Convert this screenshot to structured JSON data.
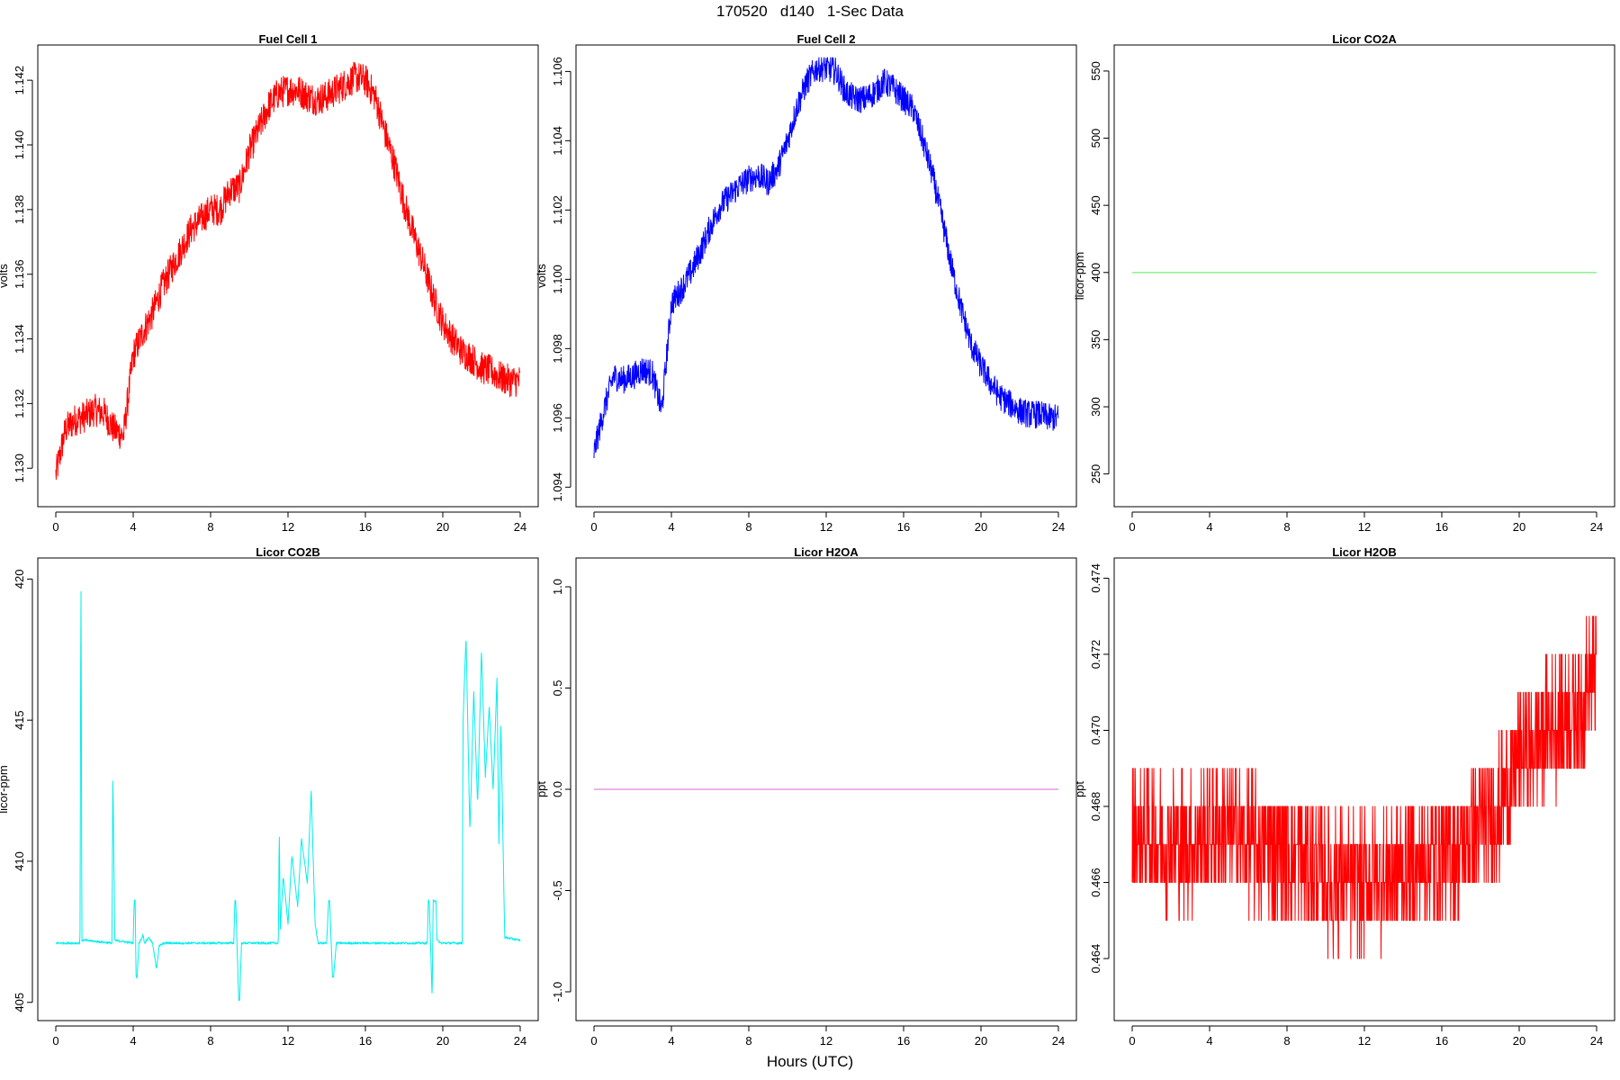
{
  "page": {
    "title": "170520   d140   1-Sec Data",
    "xlabel": "Hours (UTC)"
  },
  "chart_data": [
    {
      "type": "line",
      "title": "Fuel Cell 1",
      "ylabel": "volts",
      "color": "#ff0000",
      "xlim": [
        0,
        24
      ],
      "ylim": [
        1.1292,
        1.1427
      ],
      "xticks": [
        "0",
        "4",
        "8",
        "12",
        "16",
        "20",
        "24"
      ],
      "yticks": [
        "1.130",
        "1.132",
        "1.134",
        "1.136",
        "1.138",
        "1.140",
        "1.142"
      ],
      "noise": 0.0005,
      "x": [
        0,
        0.5,
        1,
        1.5,
        2,
        2.5,
        3,
        3.5,
        4,
        4.5,
        5,
        5.5,
        6,
        6.5,
        7,
        7.5,
        8,
        8.5,
        9,
        9.5,
        10,
        10.5,
        11,
        11.5,
        12,
        12.5,
        13,
        13.5,
        14,
        14.5,
        15,
        15.5,
        16,
        16.5,
        17,
        17.5,
        18,
        18.5,
        19,
        19.5,
        20,
        20.5,
        21,
        21.5,
        22,
        22.5,
        23,
        23.5,
        24
      ],
      "y": [
        1.1298,
        1.1312,
        1.1315,
        1.1316,
        1.1318,
        1.1317,
        1.1312,
        1.131,
        1.1335,
        1.1342,
        1.1348,
        1.1356,
        1.1362,
        1.1368,
        1.1374,
        1.1377,
        1.138,
        1.138,
        1.1386,
        1.1387,
        1.1398,
        1.1405,
        1.1412,
        1.1416,
        1.1417,
        1.1417,
        1.1415,
        1.1414,
        1.1415,
        1.1417,
        1.1419,
        1.1421,
        1.142,
        1.1415,
        1.1404,
        1.1394,
        1.1382,
        1.1372,
        1.1363,
        1.1353,
        1.1345,
        1.134,
        1.1336,
        1.1334,
        1.1331,
        1.133,
        1.1328,
        1.1327,
        1.1327
      ]
    },
    {
      "type": "line",
      "title": "Fuel Cell 2",
      "ylabel": "volts",
      "color": "#0000ff",
      "xlim": [
        0,
        24
      ],
      "ylim": [
        1.0938,
        1.1064
      ],
      "xticks": [
        "0",
        "4",
        "8",
        "12",
        "16",
        "20",
        "24"
      ],
      "yticks": [
        "1.094",
        "1.096",
        "1.098",
        "1.100",
        "1.102",
        "1.104",
        "1.106"
      ],
      "noise": 0.0004,
      "x": [
        0,
        0.5,
        1,
        1.5,
        2,
        2.5,
        3,
        3.5,
        4,
        4.5,
        5,
        5.5,
        6,
        6.5,
        7,
        7.5,
        8,
        8.5,
        9,
        9.5,
        10,
        10.5,
        11,
        11.5,
        12,
        12.5,
        13,
        13.5,
        14,
        14.5,
        15,
        15.5,
        16,
        16.5,
        17,
        17.5,
        18,
        18.5,
        19,
        19.5,
        20,
        20.5,
        21,
        21.5,
        22,
        22.5,
        23,
        23.5,
        24
      ],
      "y": [
        1.095,
        1.0962,
        1.0972,
        1.0971,
        1.0972,
        1.0974,
        1.0973,
        1.0962,
        1.0993,
        1.0997,
        1.1002,
        1.1008,
        1.1015,
        1.1021,
        1.1024,
        1.1027,
        1.1029,
        1.103,
        1.1028,
        1.1032,
        1.104,
        1.105,
        1.1057,
        1.1061,
        1.1061,
        1.106,
        1.1054,
        1.1052,
        1.1052,
        1.1054,
        1.1057,
        1.1055,
        1.1052,
        1.1049,
        1.104,
        1.103,
        1.1017,
        1.1003,
        1.0991,
        1.0981,
        1.0975,
        1.097,
        1.0966,
        1.0964,
        1.0962,
        1.0961,
        1.0961,
        1.096,
        1.096
      ]
    },
    {
      "type": "line",
      "title": "Licor CO2A",
      "ylabel": "licor-ppm",
      "color": "#66ee66",
      "xlim": [
        0,
        24
      ],
      "ylim": [
        235,
        560
      ],
      "xticks": [
        "0",
        "4",
        "8",
        "12",
        "16",
        "20",
        "24"
      ],
      "yticks": [
        "250",
        "300",
        "350",
        "400",
        "450",
        "500",
        "550"
      ],
      "noise": 0,
      "x": [
        0,
        24
      ],
      "y": [
        400,
        400
      ]
    },
    {
      "type": "line",
      "title": "Licor CO2B",
      "ylabel": "licor-ppm",
      "color": "#00eeee",
      "xlim": [
        0,
        24
      ],
      "ylim": [
        404.8,
        420.3
      ],
      "xticks": [
        "0",
        "4",
        "8",
        "12",
        "16",
        "20",
        "24"
      ],
      "yticks": [
        "405",
        "410",
        "415",
        "420"
      ],
      "noise": 0.04,
      "x": [
        0,
        1.25,
        1.3,
        1.35,
        1.5,
        2.9,
        2.95,
        3.05,
        4,
        4.05,
        4.1,
        4.15,
        4.2,
        4.3,
        4.45,
        4.5,
        4.6,
        4.8,
        5,
        5.2,
        5.35,
        5.6,
        6,
        9.2,
        9.25,
        9.3,
        9.45,
        9.5,
        9.6,
        9.7,
        11.5,
        11.55,
        11.6,
        11.75,
        12,
        12.2,
        12.5,
        12.7,
        13,
        13.2,
        13.4,
        13.55,
        14,
        14.1,
        14.15,
        14.3,
        14.35,
        14.5,
        19.2,
        19.25,
        19.3,
        19.45,
        19.5,
        19.65,
        19.7,
        19.9,
        20,
        21,
        21.05,
        21.2,
        21.4,
        21.6,
        21.8,
        22,
        22.2,
        22.4,
        22.6,
        22.8,
        22.9,
        23,
        23.2,
        24
      ],
      "y": [
        407.1,
        407.1,
        420.3,
        407.2,
        407.2,
        407.1,
        413,
        407.2,
        407.1,
        408.6,
        408.6,
        405.9,
        405.9,
        407.1,
        407.3,
        407.4,
        407.1,
        407.3,
        407.1,
        406.2,
        407,
        407.1,
        407.1,
        407.1,
        408.6,
        408.6,
        405.1,
        405.1,
        407.1,
        407.1,
        407.1,
        411.2,
        407.5,
        409.5,
        407.8,
        410.2,
        408.4,
        410.8,
        409.2,
        412.5,
        407.8,
        407.1,
        407.1,
        408.6,
        408.6,
        405.9,
        405.9,
        407.1,
        407.1,
        408.6,
        408.6,
        405.1,
        408.6,
        408.6,
        407.2,
        407.1,
        407.1,
        407.1,
        415,
        418,
        411,
        416,
        412,
        417.5,
        413,
        415.5,
        412.5,
        416.5,
        410.5,
        415,
        407.3,
        407.2
      ]
    },
    {
      "type": "line",
      "title": "Licor H2OA",
      "ylabel": "ppt",
      "color": "#dd88dd",
      "xlim": [
        0,
        24
      ],
      "ylim": [
        -1.08,
        1.08
      ],
      "xticks": [
        "0",
        "4",
        "8",
        "12",
        "16",
        "20",
        "24"
      ],
      "yticks": [
        "-1.0",
        "-0.5",
        "0.0",
        "0.5",
        "1.0"
      ],
      "noise": 0,
      "x": [
        0,
        24
      ],
      "y": [
        0,
        0
      ]
    },
    {
      "type": "line",
      "title": "Licor H2OB",
      "ylabel": "ppt",
      "color": "#ff0000",
      "xlim": [
        0,
        24
      ],
      "ylim": [
        0.4627,
        0.4742
      ],
      "xticks": [
        "0",
        "4",
        "8",
        "12",
        "16",
        "20",
        "24"
      ],
      "yticks": [
        "0.464",
        "0.466",
        "0.468",
        "0.470",
        "0.472",
        "0.474"
      ],
      "noise": 0.0017,
      "quantum": 0.001,
      "x": [
        0,
        1,
        2,
        3,
        4,
        5,
        6,
        7,
        8,
        9,
        10,
        11,
        12,
        13,
        14,
        15,
        16,
        17,
        18,
        19,
        20,
        21,
        22,
        23,
        24
      ],
      "y": [
        0.4672,
        0.4672,
        0.4671,
        0.467,
        0.4673,
        0.4674,
        0.467,
        0.4669,
        0.4668,
        0.4666,
        0.4661,
        0.466,
        0.466,
        0.4662,
        0.4664,
        0.4665,
        0.4667,
        0.4669,
        0.4675,
        0.468,
        0.4692,
        0.4698,
        0.4702,
        0.4706,
        0.4715
      ]
    }
  ]
}
